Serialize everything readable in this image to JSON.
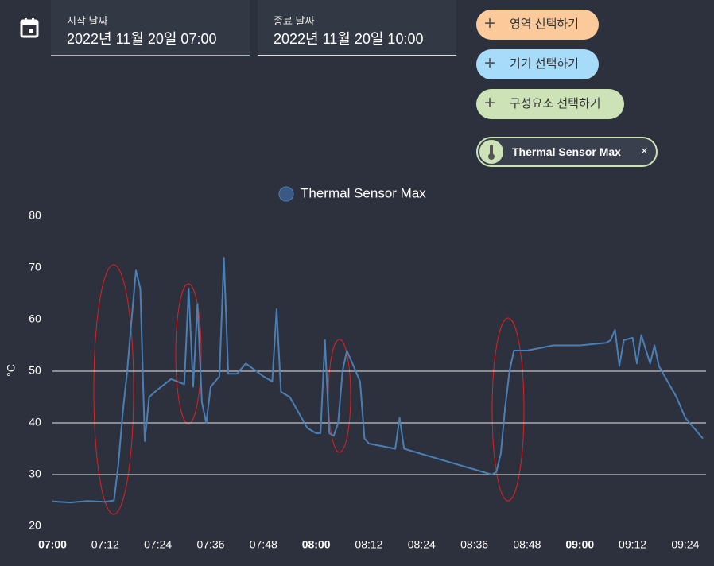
{
  "header": {
    "start_label": "시작 날짜",
    "start_value": "2022년 11월 20일 07:00",
    "end_label": "종료 날짜",
    "end_value": "2022년 11월 20일 10:00"
  },
  "buttons": [
    "영역 선택하기",
    "기기 선택하기",
    "구성요소 선택하기"
  ],
  "chip": "Thermal Sensor Max",
  "chart_data": {
    "type": "line",
    "y_label": "°C",
    "xlim": [
      "07:00",
      "09:28"
    ],
    "xticks": [
      "07:00",
      "07:12",
      "07:24",
      "07:36",
      "07:48",
      "08:00",
      "08:12",
      "08:24",
      "08:36",
      "08:48",
      "09:00",
      "09:12",
      "09:24"
    ],
    "ylim": [
      20,
      80
    ],
    "yticks": [
      20,
      30,
      40,
      50,
      60,
      70,
      80
    ],
    "grid_lines": [
      30,
      40,
      50
    ],
    "x": [
      "07:00",
      "07:04",
      "07:08",
      "07:12",
      "07:14",
      "07:15",
      "07:16",
      "07:17",
      "07:18",
      "07:19",
      "07:20",
      "07:21",
      "07:22",
      "07:24",
      "07:27",
      "07:30",
      "07:31",
      "07:32",
      "07:33",
      "07:34",
      "07:35",
      "07:36",
      "07:38",
      "07:39",
      "07:40",
      "07:42",
      "07:44",
      "07:48",
      "07:50",
      "07:51",
      "07:52",
      "07:54",
      "07:58",
      "08:00",
      "08:01",
      "08:02",
      "08:03",
      "08:04",
      "08:05",
      "08:06",
      "08:07",
      "08:09",
      "08:10",
      "08:11",
      "08:12",
      "08:18",
      "08:19",
      "08:20",
      "08:24",
      "08:30",
      "08:36",
      "08:40",
      "08:41",
      "08:42",
      "08:43",
      "08:44",
      "08:45",
      "08:48",
      "08:54",
      "09:00",
      "09:06",
      "09:07",
      "09:08",
      "09:09",
      "09:10",
      "09:12",
      "09:13",
      "09:14",
      "09:16",
      "09:17",
      "09:18",
      "09:20",
      "09:22",
      "09:24",
      "09:26",
      "09:28"
    ],
    "series": [
      {
        "name": "Thermal Sensor Max",
        "color": "#4a7fb5",
        "values": [
          24.8,
          24.6,
          24.9,
          24.7,
          25,
          32,
          42,
          50,
          60,
          69.5,
          66,
          36.5,
          45,
          46.5,
          48.5,
          47.5,
          66,
          47,
          63,
          44,
          40,
          47,
          49,
          72,
          49.5,
          49.5,
          51.5,
          49,
          48,
          62,
          46,
          45,
          39,
          38,
          38,
          56,
          38,
          37.5,
          40,
          50,
          54,
          50,
          48,
          37,
          36,
          35,
          41,
          35,
          34,
          32.5,
          31,
          30,
          30.5,
          34,
          43,
          50,
          54,
          54,
          55,
          55,
          55.5,
          56,
          58,
          51,
          56,
          56.5,
          51.5,
          57,
          51.5,
          55,
          51,
          48,
          45,
          41,
          39,
          37
        ]
      }
    ]
  }
}
